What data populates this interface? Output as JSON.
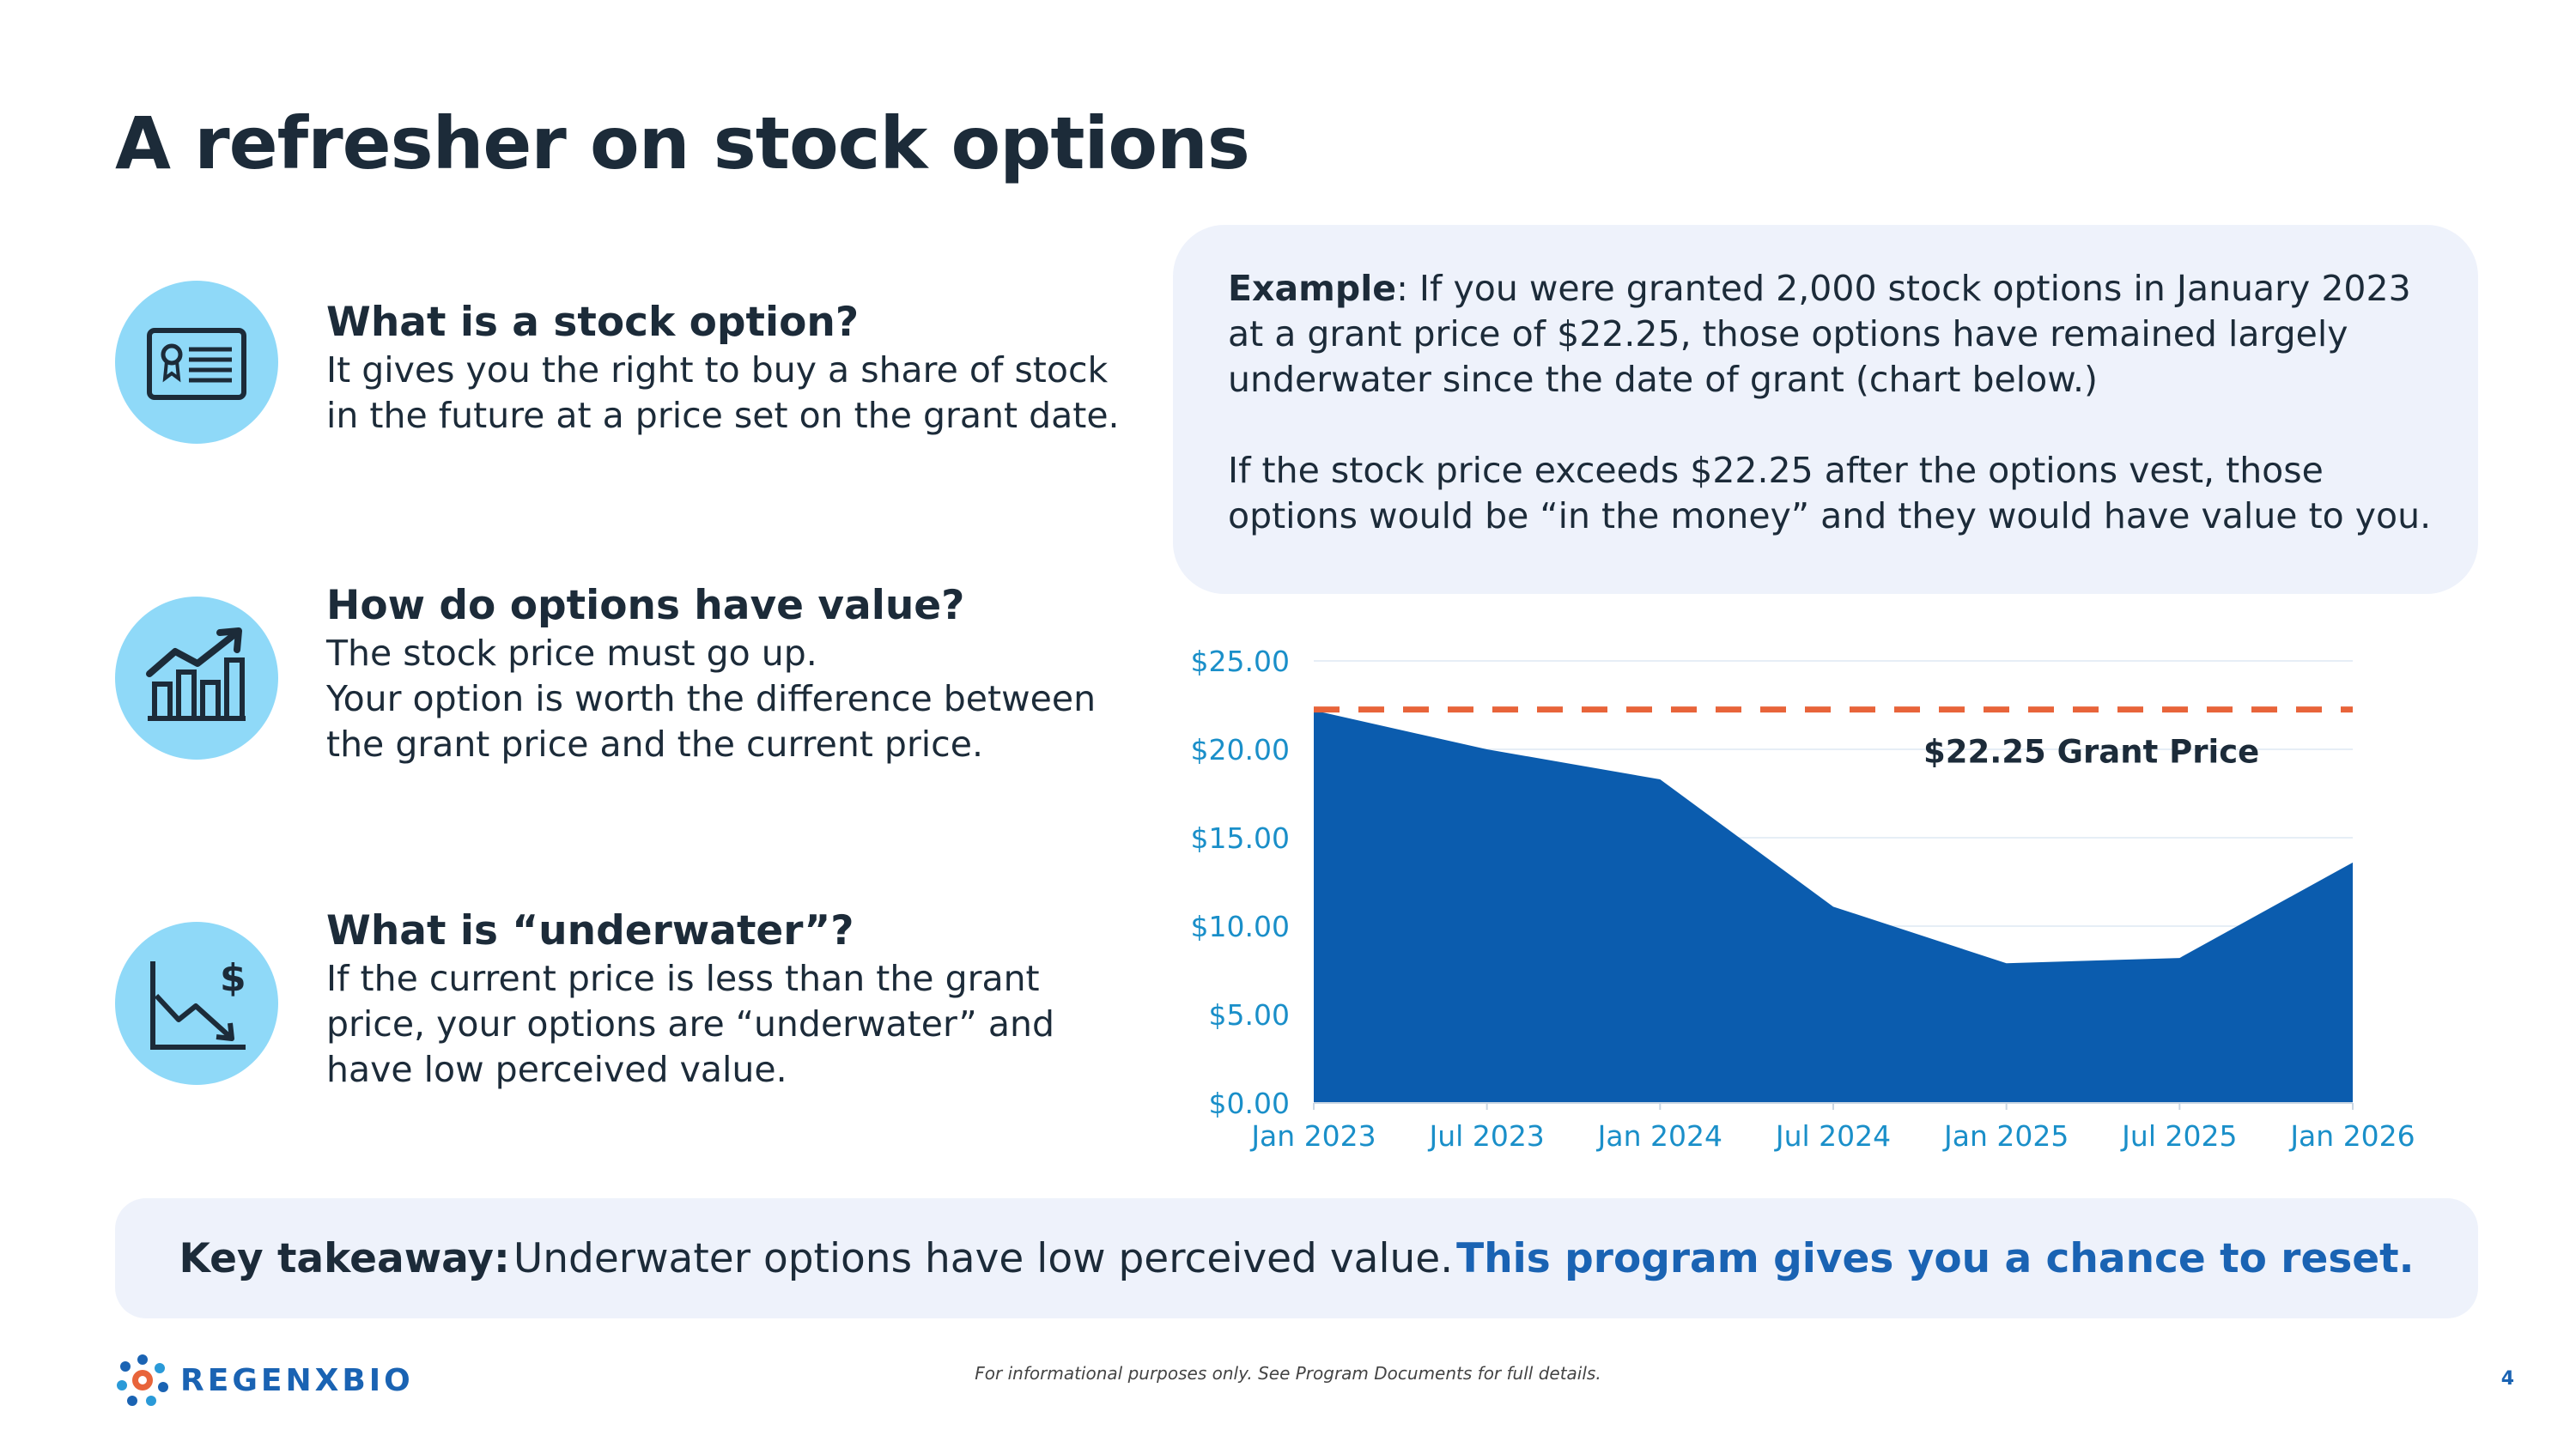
{
  "slide": {
    "title": "A refresher on stock options",
    "page_number": "4"
  },
  "features": [
    {
      "icon": "certificate-icon",
      "heading": "What is a stock option?",
      "lines": [
        "It gives you the right to buy a share of stock",
        "in the future at a price set on the grant date."
      ]
    },
    {
      "icon": "growth-chart-icon",
      "heading": "How do options have value?",
      "lines": [
        "The stock price must go up.",
        "Your option is worth the difference between",
        "the grant price and the current price."
      ]
    },
    {
      "icon": "declining-chart-dollar-icon",
      "heading": "What is “underwater”?",
      "lines": [
        "If the current price is less than the grant",
        "price, your options are “underwater” and",
        "have low perceived value."
      ]
    }
  ],
  "example": {
    "label": "Example",
    "para1_lines": [
      ": If you were granted 2,000 stock options in January 2023",
      "at a grant price of $22.25, those options have remained largely",
      "underwater since the date of grant (chart below.)"
    ],
    "para2_lines": [
      "If the stock price exceeds $22.25 after the options vest, those",
      "options would be “in the money” and they would have value to you."
    ]
  },
  "chart_data": {
    "type": "area",
    "x": [
      "Jan 2023",
      "Jul 2023",
      "Jan 2024",
      "Jul 2024",
      "Jan 2025",
      "Jul 2025",
      "Jan 2026"
    ],
    "y_tick_labels": [
      "$0.00",
      "$5.00",
      "$10.00",
      "$15.00",
      "$20.00",
      "$25.00"
    ],
    "ylim": [
      0,
      25
    ],
    "series": [
      {
        "x": [
          0,
          1,
          2,
          3,
          4,
          5,
          6
        ],
        "values": [
          22.2,
          20.0,
          18.3,
          11.1,
          7.9,
          8.2,
          13.6
        ]
      }
    ],
    "reference_line": {
      "value": 22.25,
      "label": "$22.25 Grant Price"
    },
    "grid": true,
    "colors": {
      "area": "#0b5cae",
      "reference": "#e8643a",
      "ticks": "#1a8fc9",
      "grid": "#e6eef6"
    }
  },
  "takeaway": {
    "label": "Key takeaway:",
    "text": "Underwater options have low perceived value.",
    "emphasis": "This program gives you a chance to reset."
  },
  "footer": {
    "logo_text": "REGENXBIO",
    "disclaimer": "For informational purposes only. See Program Documents for full details."
  }
}
